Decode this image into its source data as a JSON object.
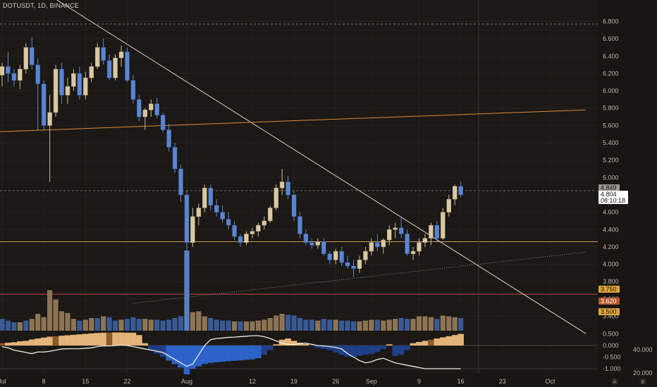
{
  "chart_data": {
    "type": "candlestick",
    "title": "DOTUSDT, 1D, BINANCE",
    "y_range": [
      3.25,
      6.95
    ],
    "y_ticks": [
      "6.800",
      "6.600",
      "6.400",
      "6.200",
      "6.000",
      "5.800",
      "5.600",
      "5.400",
      "5.200",
      "5.000",
      "4.800",
      "4.600",
      "4.400",
      "4.200",
      "4.000",
      "3.800",
      "3.600",
      "3.400"
    ],
    "x_labels": [
      "Jul",
      "8",
      "15",
      "22",
      "Aug",
      "12",
      "19",
      "26",
      "Sep",
      "9",
      "16",
      "23",
      "Oct"
    ],
    "x_label_days": [
      0,
      7,
      14,
      21,
      31,
      42,
      49,
      56,
      62,
      70,
      77,
      84,
      92
    ],
    "candles": [
      [
        6.18,
        6.32,
        6.05,
        6.28
      ],
      [
        6.28,
        6.45,
        6.1,
        6.2
      ],
      [
        6.2,
        6.25,
        6.05,
        6.12
      ],
      [
        6.12,
        6.3,
        6.02,
        6.25
      ],
      [
        6.25,
        6.55,
        6.2,
        6.5
      ],
      [
        6.5,
        6.62,
        6.25,
        6.3
      ],
      [
        6.3,
        6.38,
        5.55,
        6.08
      ],
      [
        6.08,
        6.12,
        5.55,
        5.6
      ],
      [
        5.6,
        5.95,
        4.95,
        5.75
      ],
      [
        5.75,
        6.3,
        5.7,
        6.25
      ],
      [
        6.25,
        6.32,
        5.85,
        5.95
      ],
      [
        5.95,
        6.15,
        5.85,
        6.05
      ],
      [
        6.05,
        6.25,
        6.0,
        6.2
      ],
      [
        6.2,
        6.28,
        5.9,
        5.95
      ],
      [
        5.95,
        6.22,
        5.9,
        6.15
      ],
      [
        6.15,
        6.32,
        6.1,
        6.28
      ],
      [
        6.28,
        6.55,
        6.25,
        6.5
      ],
      [
        6.5,
        6.6,
        6.3,
        6.35
      ],
      [
        6.35,
        6.42,
        6.12,
        6.15
      ],
      [
        6.15,
        6.42,
        6.12,
        6.38
      ],
      [
        6.38,
        6.52,
        6.28,
        6.45
      ],
      [
        6.45,
        6.5,
        6.1,
        6.12
      ],
      [
        6.12,
        6.18,
        5.85,
        5.9
      ],
      [
        5.9,
        5.95,
        5.65,
        5.7
      ],
      [
        5.7,
        5.8,
        5.55,
        5.78
      ],
      [
        5.78,
        5.9,
        5.7,
        5.85
      ],
      [
        5.85,
        5.92,
        5.68,
        5.72
      ],
      [
        5.72,
        5.75,
        5.52,
        5.55
      ],
      [
        5.55,
        5.62,
        5.3,
        5.35
      ],
      [
        5.35,
        5.4,
        5.05,
        5.1
      ],
      [
        5.1,
        5.15,
        4.72,
        4.8
      ],
      [
        4.8,
        4.85,
        3.6,
        4.25
      ],
      [
        4.25,
        4.65,
        4.2,
        4.55
      ],
      [
        4.55,
        4.7,
        4.45,
        4.65
      ],
      [
        4.65,
        4.92,
        4.6,
        4.88
      ],
      [
        4.88,
        4.92,
        4.62,
        4.68
      ],
      [
        4.68,
        4.75,
        4.55,
        4.6
      ],
      [
        4.6,
        4.68,
        4.48,
        4.52
      ],
      [
        4.52,
        4.6,
        4.4,
        4.45
      ],
      [
        4.45,
        4.5,
        4.28,
        4.32
      ],
      [
        4.32,
        4.35,
        4.2,
        4.25
      ],
      [
        4.25,
        4.38,
        4.22,
        4.35
      ],
      [
        4.35,
        4.42,
        4.3,
        4.38
      ],
      [
        4.38,
        4.48,
        4.32,
        4.45
      ],
      [
        4.45,
        4.55,
        4.4,
        4.5
      ],
      [
        4.5,
        4.68,
        4.48,
        4.65
      ],
      [
        4.65,
        4.92,
        4.62,
        4.88
      ],
      [
        4.88,
        5.1,
        4.8,
        4.95
      ],
      [
        4.95,
        5.02,
        4.75,
        4.8
      ],
      [
        4.8,
        4.85,
        4.5,
        4.55
      ],
      [
        4.55,
        4.6,
        4.3,
        4.35
      ],
      [
        4.35,
        4.4,
        4.22,
        4.25
      ],
      [
        4.25,
        4.3,
        4.18,
        4.22
      ],
      [
        4.22,
        4.3,
        4.18,
        4.26
      ],
      [
        4.26,
        4.3,
        4.1,
        4.12
      ],
      [
        4.12,
        4.15,
        4.0,
        4.05
      ],
      [
        4.05,
        4.18,
        4.0,
        4.15
      ],
      [
        4.15,
        4.2,
        3.98,
        4.02
      ],
      [
        4.02,
        4.1,
        3.95,
        3.98
      ],
      [
        3.98,
        4.05,
        3.85,
        3.95
      ],
      [
        3.95,
        4.1,
        3.9,
        4.05
      ],
      [
        4.05,
        4.2,
        4.0,
        4.15
      ],
      [
        4.15,
        4.3,
        4.1,
        4.25
      ],
      [
        4.25,
        4.35,
        4.15,
        4.2
      ],
      [
        4.2,
        4.3,
        4.12,
        4.28
      ],
      [
        4.28,
        4.45,
        4.22,
        4.4
      ],
      [
        4.4,
        4.48,
        4.3,
        4.42
      ],
      [
        4.42,
        4.55,
        4.3,
        4.35
      ],
      [
        4.35,
        4.4,
        4.1,
        4.12
      ],
      [
        4.12,
        4.2,
        4.05,
        4.15
      ],
      [
        4.15,
        4.3,
        4.1,
        4.25
      ],
      [
        4.25,
        4.35,
        4.2,
        4.3
      ],
      [
        4.3,
        4.48,
        4.22,
        4.45
      ],
      [
        4.45,
        4.5,
        4.25,
        4.3
      ],
      [
        4.3,
        4.65,
        4.28,
        4.6
      ],
      [
        4.6,
        4.8,
        4.55,
        4.75
      ],
      [
        4.75,
        4.92,
        4.68,
        4.9
      ],
      [
        4.9,
        4.95,
        4.78,
        4.8
      ]
    ],
    "volume": [
      14,
      12,
      10,
      10,
      12,
      14,
      20,
      16,
      48,
      37,
      23,
      21,
      14,
      12,
      13,
      15,
      15,
      17,
      16,
      12,
      13,
      14,
      16,
      14,
      14,
      13,
      13,
      12,
      13,
      15,
      17,
      95,
      22,
      23,
      17,
      15,
      13,
      12,
      12,
      11,
      11,
      11,
      11,
      12,
      13,
      15,
      18,
      20,
      19,
      18,
      15,
      13,
      13,
      12,
      14,
      13,
      13,
      12,
      12,
      11,
      11,
      12,
      13,
      13,
      12,
      13,
      14,
      15,
      14,
      14,
      17,
      17,
      16,
      14,
      18,
      17,
      16,
      15
    ],
    "volume_colors": [
      "b",
      "b",
      "b",
      "t",
      "b",
      "t",
      "t",
      "t",
      "t",
      "t",
      "t",
      "t",
      "t",
      "b",
      "t",
      "t",
      "b",
      "t",
      "b",
      "b",
      "t",
      "b",
      "b",
      "b",
      "t",
      "t",
      "b",
      "b",
      "b",
      "b",
      "b",
      "B",
      "t",
      "t",
      "t",
      "b",
      "b",
      "b",
      "b",
      "t",
      "b",
      "t",
      "t",
      "t",
      "t",
      "t",
      "t",
      "t",
      "b",
      "b",
      "b",
      "b",
      "b",
      "t",
      "b",
      "b",
      "t",
      "b",
      "b",
      "b",
      "t",
      "t",
      "t",
      "b",
      "t",
      "t",
      "t",
      "b",
      "b",
      "t",
      "t",
      "t",
      "t",
      "b",
      "t",
      "t",
      "t",
      "b"
    ],
    "price_labels": [
      {
        "value": "4.849",
        "color": "#9c9890",
        "text_color": "#181512"
      },
      {
        "value": "4.804",
        "color": "#ffffff",
        "text_color": "#181512",
        "sub": "08:10:18"
      },
      {
        "value": "3.750",
        "color": "#e0a53a",
        "text_color": "#181512"
      },
      {
        "value": "3.620",
        "color": "#b8552c",
        "text_color": "#ffffff"
      },
      {
        "value": "3.500",
        "color": "#e0a53a",
        "text_color": "#181512"
      }
    ],
    "horizontal_lines": [
      {
        "value": 6.77,
        "style": "dashed",
        "color": "#6e6a64"
      },
      {
        "value": 4.849,
        "style": "dashed",
        "color": "#6e6a64"
      },
      {
        "value": 4.26,
        "style": "solid",
        "color": "#d79a55"
      },
      {
        "value": 3.655,
        "style": "solid",
        "color": "#c24a4a"
      }
    ],
    "trendlines": [
      {
        "from": [
          8,
          7.1
        ],
        "to": [
          98,
          3.2
        ],
        "color": "#d9d4cc",
        "style": "solid"
      },
      {
        "from": [
          -4,
          5.52
        ],
        "to": [
          98,
          5.78
        ],
        "color": "#d98a40",
        "style": "solid"
      },
      {
        "from": [
          22,
          3.55
        ],
        "to": [
          98,
          4.14
        ],
        "color": "#8f8a83",
        "style": "dotted"
      }
    ],
    "crosshair_day": 80,
    "indicator": {
      "y_ticks": [
        "0.500",
        "0.000",
        "-0.500",
        "-1.000"
      ],
      "secondary_ticks": [
        "40.000",
        "20.000"
      ],
      "histogram": [
        0.1,
        0.12,
        0.14,
        0.18,
        0.2,
        0.26,
        0.3,
        0.34,
        0.38,
        0.4,
        0.42,
        0.44,
        0.46,
        0.48,
        0.5,
        0.52,
        0.54,
        0.55,
        0.56,
        0.56,
        0.56,
        0.55,
        0.55,
        0.45,
        0.1,
        -0.2,
        -0.35,
        -0.5,
        -0.65,
        -0.8,
        -0.95,
        -1.3,
        -1.0,
        -0.9,
        -0.8,
        -0.75,
        -0.72,
        -0.7,
        -0.68,
        -0.66,
        -0.64,
        -0.62,
        -0.6,
        -0.55,
        -0.4,
        -0.2,
        0.05,
        0.25,
        0.3,
        0.2,
        0.12,
        0.06,
        -0.02,
        -0.1,
        -0.15,
        -0.2,
        -0.3,
        -0.4,
        -0.48,
        -0.5,
        -0.45,
        -0.4,
        -0.36,
        -0.28,
        -0.15,
        0.05,
        -0.45,
        -0.4,
        -0.2,
        0.1,
        0.15,
        0.2,
        0.25,
        0.3,
        0.35,
        0.4,
        0.45,
        0.5
      ],
      "line": [
        -0.05,
        -0.1,
        -0.2,
        -0.25,
        -0.3,
        -0.35,
        -0.28,
        -0.28,
        -0.25,
        -0.2,
        -0.15,
        -0.14,
        -0.14,
        -0.14,
        -0.12,
        -0.1,
        -0.05,
        -0.02,
        -0.02,
        0.0,
        0.02,
        0.0,
        -0.05,
        -0.1,
        -0.15,
        -0.2,
        -0.25,
        -0.3,
        -0.45,
        -0.6,
        -0.75,
        -0.9,
        -0.8,
        -0.4,
        0.0,
        0.25,
        0.3,
        0.32,
        0.35,
        0.36,
        0.38,
        0.4,
        0.42,
        0.42,
        0.38,
        0.3,
        0.2,
        0.1,
        0.05,
        0.05,
        0.08,
        0.1,
        0.05,
        0.0,
        -0.02,
        -0.05,
        -0.08,
        -0.15,
        -0.35,
        -0.5,
        -0.65,
        -0.75,
        -0.7,
        -0.6,
        -0.55,
        -0.65,
        -0.75,
        -0.8,
        -0.85,
        -0.9,
        -0.95,
        -1.0,
        -1.0,
        -1.0,
        -1.0,
        -1.0,
        -1.0,
        -1.0
      ]
    },
    "footer_marks": [
      "A",
      "B"
    ]
  }
}
